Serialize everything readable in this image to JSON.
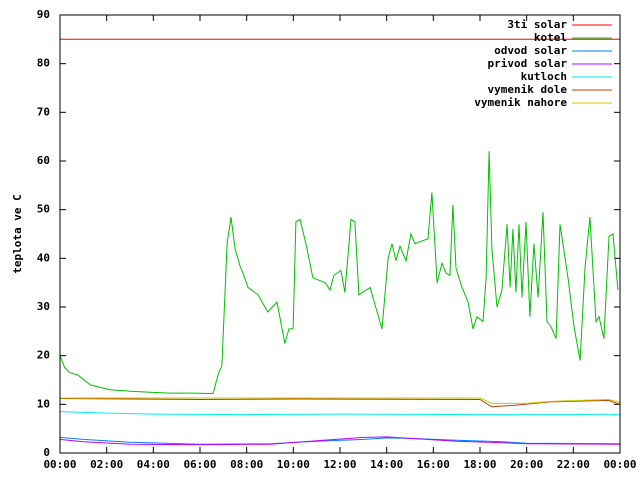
{
  "chart_data": {
    "type": "line",
    "ylabel": "teplota ve C",
    "xlim": [
      0,
      24
    ],
    "xticks": [
      {
        "value": 0,
        "label": "00:00"
      },
      {
        "value": 2,
        "label": "02:00"
      },
      {
        "value": 4,
        "label": "04:00"
      },
      {
        "value": 6,
        "label": "06:00"
      },
      {
        "value": 8,
        "label": "08:00"
      },
      {
        "value": 10,
        "label": "10:00"
      },
      {
        "value": 12,
        "label": "12:00"
      },
      {
        "value": 14,
        "label": "14:00"
      },
      {
        "value": 16,
        "label": "16:00"
      },
      {
        "value": 18,
        "label": "18:00"
      },
      {
        "value": 20,
        "label": "20:00"
      },
      {
        "value": 22,
        "label": "22:00"
      },
      {
        "value": 24,
        "label": "00:00"
      }
    ],
    "ylim": [
      0,
      90
    ],
    "yticks": [
      0,
      10,
      20,
      30,
      40,
      50,
      60,
      70,
      80,
      90
    ],
    "legend": "top-right",
    "series": [
      {
        "name": "3ti solar",
        "color": "#ff0000",
        "x": [
          0,
          24
        ],
        "values": [
          85,
          85
        ]
      },
      {
        "name": "kotel",
        "color": "#00c000",
        "x": [
          0,
          0.2,
          0.43,
          0.77,
          1.3,
          2.14,
          3,
          3.86,
          4.7,
          5.8,
          6.56,
          6.77,
          6.94,
          7.16,
          7.33,
          7.5,
          7.71,
          7.84,
          8.06,
          8.49,
          8.66,
          8.91,
          9.3,
          9.64,
          9.81,
          9.99,
          10.11,
          10.29,
          10.54,
          10.84,
          11.36,
          11.57,
          11.74,
          12.04,
          12.21,
          12.47,
          12.64,
          12.81,
          13.29,
          13.8,
          14.06,
          14.23,
          14.4,
          14.57,
          14.83,
          15.04,
          15.21,
          15.47,
          15.77,
          15.94,
          16.16,
          16.37,
          16.54,
          16.71,
          16.84,
          16.97,
          17.23,
          17.49,
          17.7,
          17.87,
          18.13,
          18.26,
          18.39,
          18.51,
          18.73,
          18.94,
          19.16,
          19.29,
          19.41,
          19.54,
          19.67,
          19.8,
          19.97,
          20.14,
          20.31,
          20.49,
          20.7,
          20.87,
          21.04,
          21.26,
          21.43,
          21.77,
          22.03,
          22.29,
          22.5,
          22.71,
          22.97,
          23.1,
          23.31,
          23.53,
          23.7,
          23.91
        ],
        "values": [
          20,
          17.5,
          16.5,
          16,
          14,
          13,
          12.7,
          12.5,
          12.3,
          12.3,
          12.2,
          16,
          18,
          43,
          48.5,
          42,
          38.5,
          37,
          34,
          32.5,
          31,
          29,
          31,
          22.5,
          25.5,
          25.5,
          47.5,
          48,
          43,
          36,
          35,
          33.5,
          36.5,
          37.5,
          33,
          48,
          47.5,
          32.5,
          34,
          25.5,
          40,
          43,
          39.5,
          42.5,
          39.5,
          45,
          43,
          43.5,
          44,
          53.5,
          35,
          39,
          37,
          36.5,
          51,
          38,
          34,
          31,
          25.5,
          28,
          27,
          36,
          62,
          42,
          30,
          33.5,
          47,
          34,
          46,
          33,
          47,
          32,
          47.5,
          28,
          43,
          32,
          49.5,
          27,
          26,
          23.5,
          47,
          36,
          26,
          19,
          38,
          48.5,
          27,
          28,
          23.5,
          44.5,
          45,
          33.5
        ]
      },
      {
        "name": "odvod solar",
        "color": "#0080ff",
        "x": [
          0,
          1,
          3,
          6,
          9,
          11,
          13,
          14,
          15,
          17,
          19,
          20,
          24
        ],
        "values": [
          3.2,
          2.8,
          2.2,
          1.8,
          1.9,
          2.4,
          2.8,
          3.1,
          3.0,
          2.6,
          2.3,
          2.0,
          1.9
        ]
      },
      {
        "name": "privod solar",
        "color": "#c000ff",
        "x": [
          0,
          1,
          3,
          6,
          9,
          11,
          13,
          14,
          15,
          17,
          19,
          20,
          24
        ],
        "values": [
          2.8,
          2.3,
          1.8,
          1.7,
          1.8,
          2.5,
          3.2,
          3.3,
          3.0,
          2.4,
          2.1,
          1.9,
          1.8
        ]
      },
      {
        "name": "kutloch",
        "color": "#00eeee",
        "x": [
          0,
          2,
          4,
          8,
          12,
          18,
          22,
          23.5,
          24
        ],
        "values": [
          8.5,
          8.2,
          8.0,
          7.9,
          8.0,
          7.9,
          7.9,
          8.0,
          7.8
        ]
      },
      {
        "name": "vymenik dole",
        "color": "#c04000",
        "x": [
          0,
          6,
          10,
          18,
          18.5,
          19.5,
          21,
          23.5,
          24
        ],
        "values": [
          11.2,
          11,
          11.1,
          11,
          9.5,
          9.8,
          10.5,
          10.8,
          10
        ]
      },
      {
        "name": "vymenik nahore",
        "color": "#c8c800",
        "x": [
          0,
          18,
          18.5,
          20,
          21,
          23.5,
          24
        ],
        "values": [
          11.3,
          11.3,
          10.2,
          10.2,
          10.6,
          11,
          10.4
        ]
      }
    ]
  }
}
